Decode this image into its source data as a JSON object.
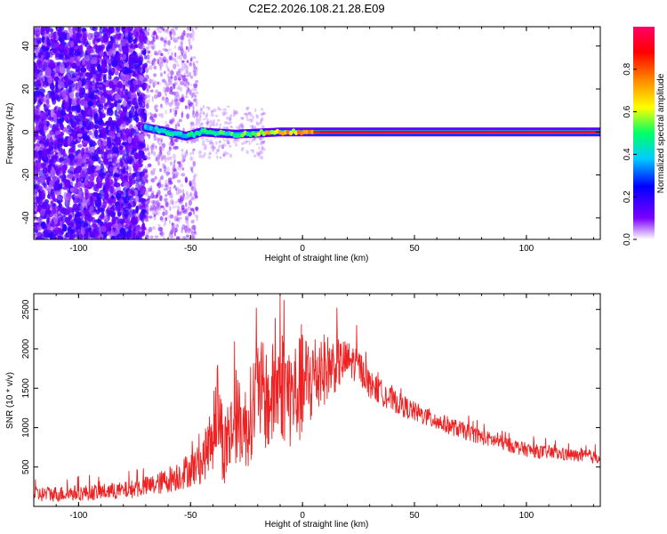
{
  "title": "C2E2.2026.108.21.28.E09",
  "chart_data": [
    {
      "type": "heatmap",
      "xlabel": "Height of straight line (km)",
      "ylabel": "Frequency (Hz)",
      "xlim": [
        -120,
        133
      ],
      "ylim": [
        -50,
        49
      ],
      "x_ticks": [
        "-100",
        "-50",
        "0",
        "50",
        "100"
      ],
      "x_tick_values": [
        -100,
        -50,
        0,
        50,
        100
      ],
      "y_ticks": [
        "-40",
        "-20",
        "0",
        "20",
        "40"
      ],
      "y_tick_values": [
        -40,
        -20,
        0,
        20,
        40
      ],
      "colorbar": {
        "label": "Normalized spectral amplitude",
        "range": [
          0,
          1
        ],
        "ticks": [
          "0.0",
          "0.2",
          "0.4",
          "0.6",
          "0.8"
        ],
        "tick_values": [
          0.0,
          0.2,
          0.4,
          0.6,
          0.8
        ],
        "colors": [
          "#ffffff",
          "#7b00ff",
          "#0000ff",
          "#00ccff",
          "#00ff66",
          "#ffff00",
          "#ff8800",
          "#ff0000",
          "#ff0066"
        ]
      },
      "ridge": [
        {
          "x": -70,
          "y": 2,
          "amp": 0.45
        },
        {
          "x": -60,
          "y": 0,
          "amp": 0.45
        },
        {
          "x": -52,
          "y": -2,
          "amp": 0.45
        },
        {
          "x": -45,
          "y": 0,
          "amp": 0.5
        },
        {
          "x": -30,
          "y": -1,
          "amp": 0.5
        },
        {
          "x": -20,
          "y": -0.5,
          "amp": 0.62
        },
        {
          "x": -10,
          "y": 0,
          "amp": 0.7
        },
        {
          "x": 5,
          "y": 0,
          "amp": 0.85
        },
        {
          "x": 50,
          "y": 0,
          "amp": 0.95
        },
        {
          "x": 133,
          "y": 0,
          "amp": 0.95
        }
      ],
      "noise_region": {
        "x_start": -120,
        "x_dense_end": -70,
        "x_sparse_end": -47
      }
    },
    {
      "type": "line",
      "xlabel": "Height of straight line (km)",
      "ylabel": "SNR (10 * v/v)",
      "xlim": [
        -120,
        133
      ],
      "ylim": [
        0,
        2700
      ],
      "x_ticks": [
        "-100",
        "-50",
        "0",
        "50",
        "100"
      ],
      "x_tick_values": [
        -100,
        -50,
        0,
        50,
        100
      ],
      "y_ticks": [
        "500",
        "1000",
        "1500",
        "2000",
        "2500"
      ],
      "y_tick_values": [
        500,
        1000,
        1500,
        2000,
        2500
      ],
      "color": "#ee2222",
      "x": [
        -120,
        -100,
        -80,
        -65,
        -55,
        -45,
        -40,
        -38,
        -35,
        -30,
        -25,
        -20,
        -15,
        -10,
        -5,
        0,
        5,
        10,
        15,
        20,
        25,
        30,
        40,
        50,
        60,
        70,
        80,
        90,
        100,
        110,
        120,
        133
      ],
      "values": [
        150,
        170,
        200,
        280,
        400,
        550,
        900,
        1300,
        700,
        1100,
        1000,
        1500,
        1300,
        1600,
        1400,
        1500,
        1650,
        1750,
        1800,
        1850,
        1800,
        1550,
        1350,
        1200,
        1080,
        980,
        880,
        800,
        720,
        680,
        650,
        620
      ],
      "spread": [
        100,
        100,
        110,
        140,
        200,
        260,
        450,
        600,
        500,
        550,
        550,
        700,
        650,
        750,
        700,
        700,
        600,
        450,
        350,
        260,
        220,
        180,
        150,
        130,
        120,
        110,
        100,
        95,
        90,
        85,
        80,
        80
      ]
    }
  ]
}
